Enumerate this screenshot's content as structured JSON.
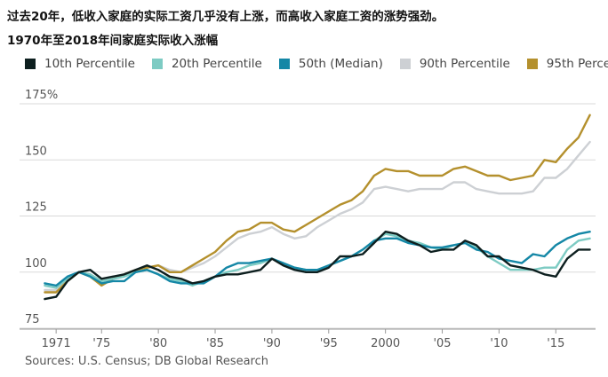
{
  "title": "过去20年，低收入家庭的实际工资几乎没有上涨，而高收入家庭工资的涨势强劲。",
  "subtitle": "1970年至2018年间家庭实际收入涨幅",
  "source": "Sources: U.S. Census; DB Global Research",
  "chart_data": {
    "type": "line",
    "title": "1970年至2018年间家庭实际收入涨幅",
    "ylim": [
      75,
      175
    ],
    "xlim": [
      1969.5,
      2018.5
    ],
    "y_ticks": [
      75,
      100,
      125,
      150,
      175
    ],
    "y_tick_labels": [
      "75",
      "100",
      "125",
      "150",
      "175%"
    ],
    "x_ticks": [
      1971,
      1975,
      1980,
      1985,
      1990,
      1995,
      2000,
      2005,
      2010,
      2015
    ],
    "x_tick_labels": [
      "1971",
      "'75",
      "'80",
      "'85",
      "'90",
      "'95",
      "2000",
      "'05",
      "'10",
      "'15"
    ],
    "grid": true,
    "legend_position": "top",
    "x": [
      1970,
      1971,
      1972,
      1973,
      1974,
      1975,
      1976,
      1977,
      1978,
      1979,
      1980,
      1981,
      1982,
      1983,
      1984,
      1985,
      1986,
      1987,
      1988,
      1989,
      1990,
      1991,
      1992,
      1993,
      1994,
      1995,
      1996,
      1997,
      1998,
      1999,
      2000,
      2001,
      2002,
      2003,
      2004,
      2005,
      2006,
      2007,
      2008,
      2009,
      2010,
      2011,
      2012,
      2013,
      2014,
      2015,
      2016,
      2017,
      2018
    ],
    "series": [
      {
        "name": "10th Percentile",
        "color": "#0d1f1f",
        "values": [
          88,
          89,
          96,
          100,
          101,
          97,
          98,
          99,
          101,
          103,
          101,
          98,
          97,
          95,
          96,
          98,
          99,
          99,
          100,
          101,
          106,
          103,
          101,
          100,
          100,
          102,
          107,
          107,
          108,
          113,
          118,
          117,
          114,
          112,
          109,
          110,
          110,
          114,
          112,
          107,
          107,
          103,
          102,
          101,
          99,
          98,
          106,
          110,
          110
        ]
      },
      {
        "name": "20th Percentile",
        "color": "#7dcbc3",
        "values": [
          94,
          93,
          97,
          100,
          99,
          96,
          97,
          98,
          100,
          101,
          99,
          97,
          96,
          94,
          96,
          98,
          100,
          101,
          103,
          104,
          106,
          104,
          102,
          101,
          101,
          103,
          105,
          107,
          110,
          114,
          117,
          116,
          114,
          113,
          111,
          110,
          112,
          113,
          111,
          107,
          104,
          101,
          101,
          101,
          102,
          102,
          110,
          114,
          115
        ]
      },
      {
        "name": "50th (Median)",
        "color": "#1487a6",
        "values": [
          95,
          94,
          98,
          100,
          98,
          95,
          96,
          96,
          100,
          101,
          99,
          96,
          95,
          95,
          95,
          98,
          102,
          104,
          104,
          105,
          106,
          104,
          102,
          101,
          101,
          103,
          105,
          107,
          110,
          114,
          115,
          115,
          113,
          112,
          111,
          111,
          112,
          113,
          110,
          109,
          106,
          105,
          104,
          108,
          107,
          112,
          115,
          117,
          118
        ]
      },
      {
        "name": "90th Percentile",
        "color": "#cdd0d4",
        "values": [
          92,
          92,
          97,
          100,
          99,
          94,
          97,
          98,
          101,
          102,
          103,
          101,
          100,
          102,
          104,
          107,
          111,
          115,
          117,
          118,
          120,
          117,
          115,
          116,
          120,
          123,
          126,
          128,
          131,
          137,
          138,
          137,
          136,
          137,
          137,
          137,
          140,
          140,
          137,
          136,
          135,
          135,
          135,
          136,
          142,
          142,
          146,
          152,
          158
        ]
      },
      {
        "name": "95th Percentile",
        "color": "#b4902d",
        "values": [
          91,
          91,
          96,
          100,
          98,
          94,
          97,
          99,
          101,
          102,
          103,
          100,
          100,
          103,
          106,
          109,
          114,
          118,
          119,
          122,
          122,
          119,
          118,
          121,
          124,
          127,
          130,
          132,
          136,
          143,
          146,
          145,
          145,
          143,
          143,
          143,
          146,
          147,
          145,
          143,
          143,
          141,
          142,
          143,
          150,
          149,
          155,
          160,
          170
        ]
      }
    ]
  }
}
